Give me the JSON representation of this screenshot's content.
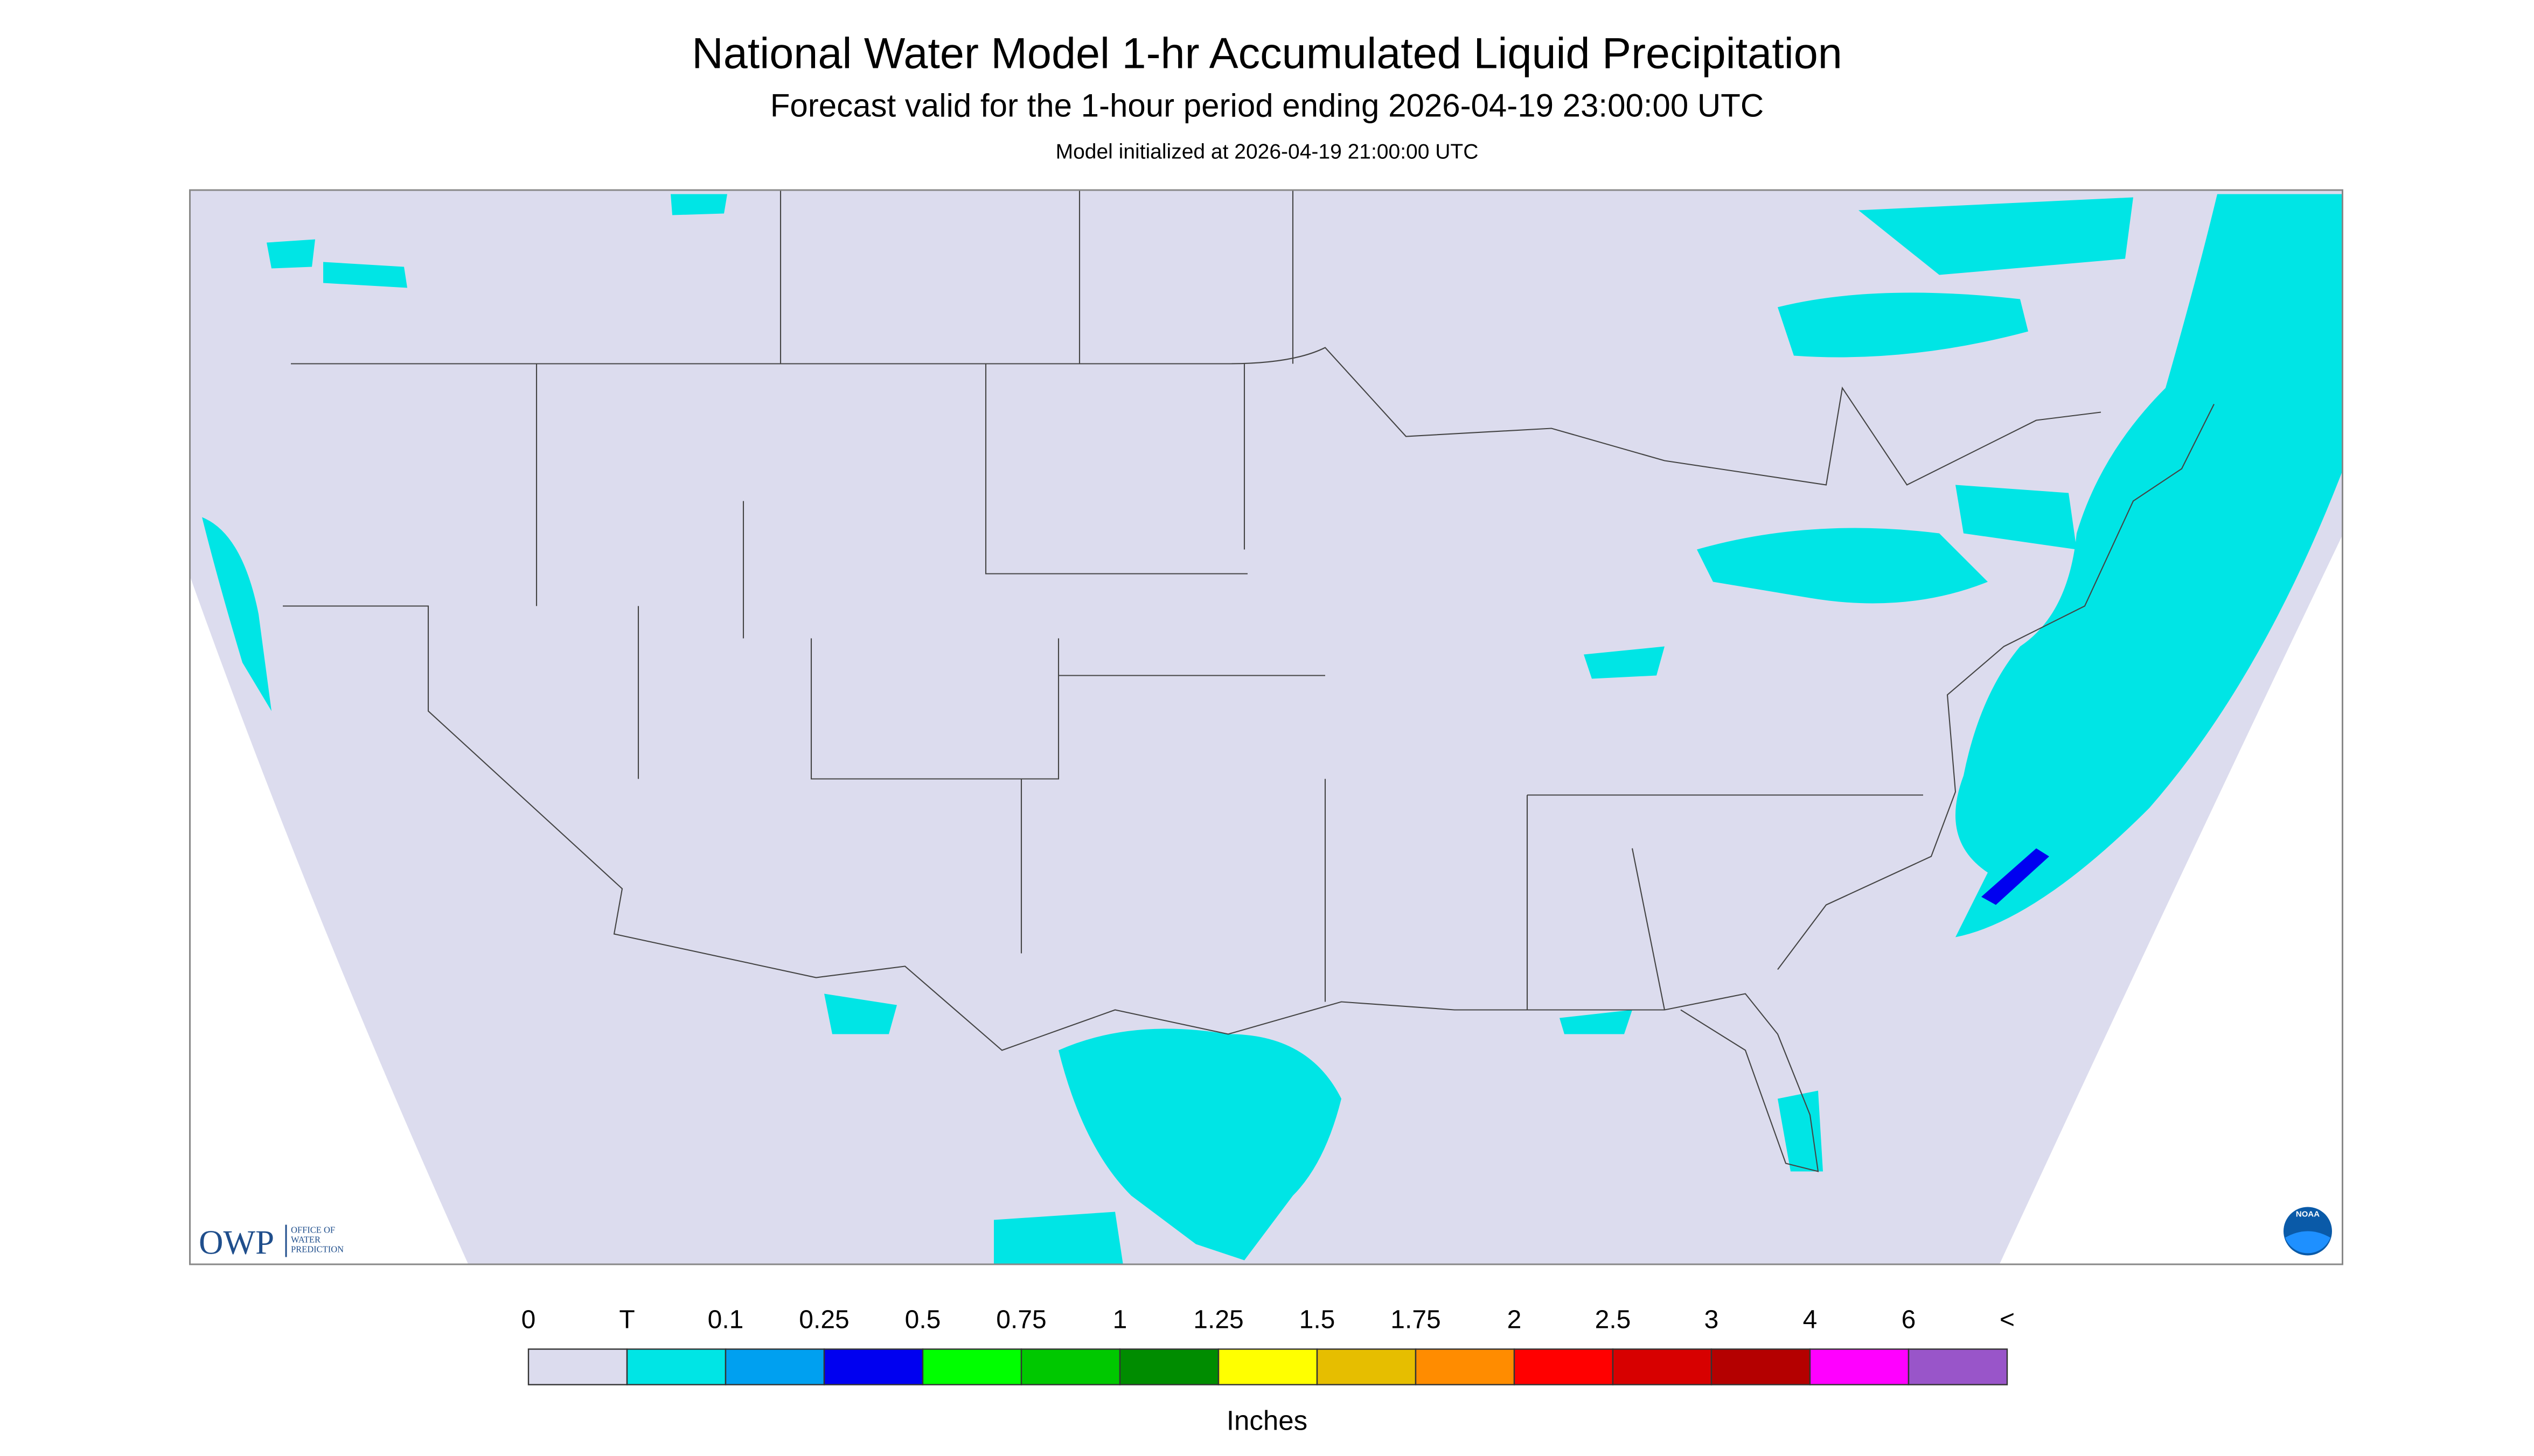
{
  "header": {
    "title": "National Water Model 1-hr Accumulated Liquid Precipitation",
    "subtitle": "Forecast valid for the 1-hour period ending 2026-04-19 23:00:00 UTC",
    "init": "Model initialized at 2026-04-19 21:00:00 UTC"
  },
  "logo": {
    "abbr": "OWP",
    "line1": "OFFICE OF",
    "line2": "WATER",
    "line3": "PREDICTION",
    "noaa": "NOAA"
  },
  "legend": {
    "labels": [
      "0",
      "T",
      "0.1",
      "0.25",
      "0.5",
      "0.75",
      "1",
      "1.25",
      "1.5",
      "1.75",
      "2",
      "2.5",
      "3",
      "4",
      "6",
      "<"
    ],
    "colors": [
      "#dcdcee",
      "#00e5e5",
      "#00a0f0",
      "#0000f0",
      "#00ff00",
      "#00c800",
      "#008c00",
      "#ffff00",
      "#e6be00",
      "#ff8c00",
      "#ff0000",
      "#d70000",
      "#b40000",
      "#ff00ff",
      "#9955c9"
    ],
    "unit": "Inches"
  }
}
